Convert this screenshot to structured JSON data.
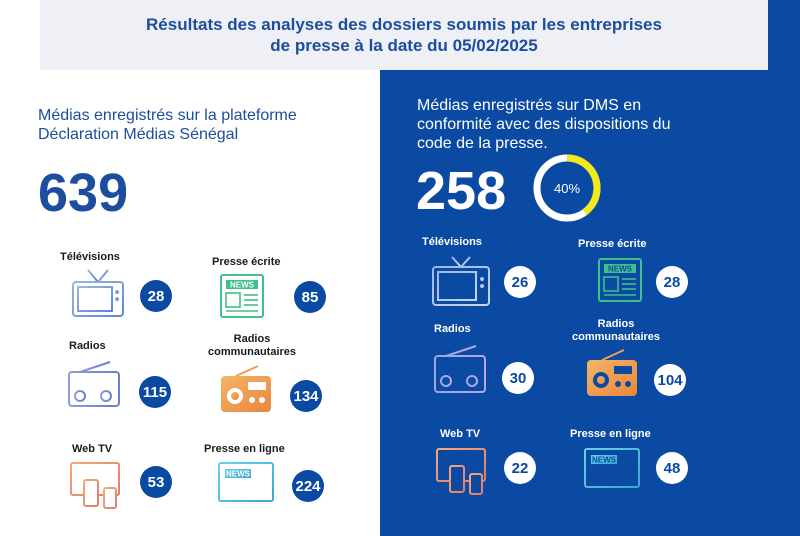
{
  "header": {
    "title": "Résultats des analyses des dossiers soumis par les entreprises de presse à la date du 05/02/2025"
  },
  "left": {
    "subtitle": "Médias enregistrés sur la plateforme Déclaration Médias Sénégal",
    "total": "639",
    "items": [
      {
        "label": "Télévisions",
        "value": "28",
        "icon": "tv-icon"
      },
      {
        "label": "Presse écrite",
        "value": "85",
        "icon": "newspaper-icon"
      },
      {
        "label": "Radios",
        "value": "115",
        "icon": "radio-icon"
      },
      {
        "label": "Radios communautaires",
        "value": "134",
        "icon": "community-radio-icon"
      },
      {
        "label": "Web TV",
        "value": "53",
        "icon": "devices-icon"
      },
      {
        "label": "Presse en ligne",
        "value": "224",
        "icon": "monitor-news-icon"
      }
    ]
  },
  "right": {
    "subtitle": "Médias enregistrés sur DMS en conformité avec des dispositions du code de la presse.",
    "total": "258",
    "percent_label": "40%",
    "percent": 40,
    "items": [
      {
        "label": "Télévisions",
        "value": "26",
        "icon": "tv-icon"
      },
      {
        "label": "Presse écrite",
        "value": "28",
        "icon": "newspaper-icon"
      },
      {
        "label": "Radios",
        "value": "30",
        "icon": "radio-icon"
      },
      {
        "label": "Radios communautaires",
        "value": "104",
        "icon": "community-radio-icon"
      },
      {
        "label": "Web TV",
        "value": "22",
        "icon": "devices-icon"
      },
      {
        "label": "Presse en ligne",
        "value": "48",
        "icon": "monitor-news-icon"
      }
    ]
  },
  "colors": {
    "brand_blue": "#0b4aa3",
    "donut_accent": "#f3ea1c",
    "icon_blue": "#7fa1d8",
    "icon_orange": "#f0a05a",
    "icon_green": "#3fc08a"
  }
}
